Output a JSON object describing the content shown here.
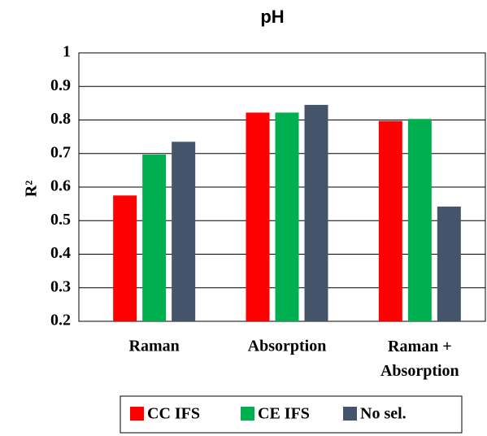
{
  "chart_data": {
    "type": "bar",
    "title": "pH",
    "y_label": "R²",
    "categories": [
      "Raman",
      "Absorption",
      "Raman + Absorption"
    ],
    "series": [
      {
        "name": "CC IFS",
        "color": "#ff0000",
        "values": [
          0.575,
          0.822,
          0.797
        ]
      },
      {
        "name": "CE IFS",
        "color": "#00b050",
        "values": [
          0.697,
          0.822,
          0.803
        ]
      },
      {
        "name": "No sel.",
        "color": "#44546a",
        "values": [
          0.735,
          0.845,
          0.542
        ]
      }
    ],
    "ylim": [
      0.2,
      1
    ],
    "yticks": [
      0.2,
      0.3,
      0.4,
      0.5,
      0.6,
      0.7,
      0.8,
      0.9,
      1
    ],
    "grid": true,
    "legend": "bottom"
  }
}
